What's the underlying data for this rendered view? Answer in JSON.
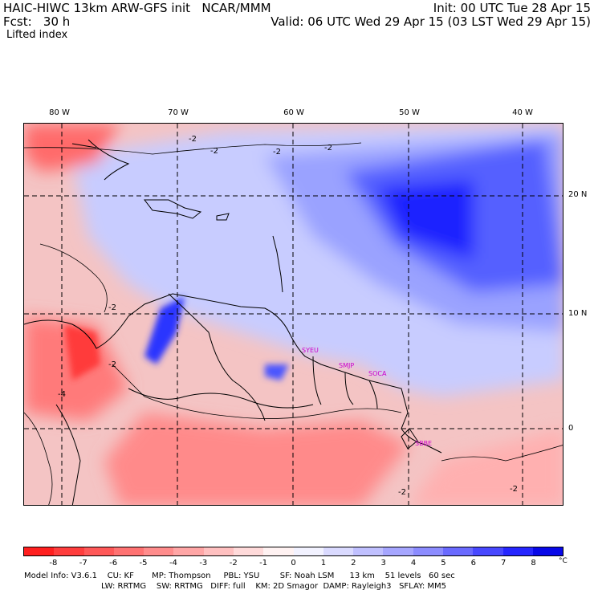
{
  "header": {
    "left_line1": "HAIC-HIWC 13km ARW-GFS init   NCAR/MMM",
    "left_line2": "Fcst:   30 h",
    "field": "Lifted index",
    "right_line1": "Init: 00 UTC Tue 28 Apr 15",
    "right_line2": "Valid: 06 UTC Wed 29 Apr 15 (03 LST Wed 29 Apr 15)"
  },
  "map": {
    "lon_labels": [
      "80 W",
      "70 W",
      "60 W",
      "50 W",
      "40 W"
    ],
    "lat_labels": [
      "20 N",
      "10 N",
      "0"
    ],
    "contour_labels": [
      "-2",
      "-2",
      "-2",
      "-2",
      "-2",
      "-2",
      "-2",
      "-4",
      "-2"
    ],
    "site_labels": [
      "SYEU",
      "SMJP",
      "SOCA",
      "SBBE"
    ]
  },
  "colorbar": {
    "ticks": [
      "-8",
      "-7",
      "-6",
      "-5",
      "-4",
      "-3",
      "-2",
      "-1",
      "0",
      "1",
      "2",
      "3",
      "4",
      "5",
      "6",
      "7",
      "8"
    ],
    "unit": "°C",
    "colors": [
      "#ff1f1f",
      "#ff3d3d",
      "#ff5858",
      "#ff7272",
      "#ff8c8c",
      "#ffa6a6",
      "#ffc0c0",
      "#ffdada",
      "#fff2f2",
      "#f2f2ff",
      "#dadaff",
      "#c0c0ff",
      "#a6a6ff",
      "#8c8cff",
      "#6a6aff",
      "#4848ff",
      "#2626ff",
      "#0808e8"
    ]
  },
  "model_info": {
    "line1": "Model Info: V3.6.1    CU: KF       MP: Thompson     PBL: YSU        SF: Noah LSM      13 km    51 levels   60 sec",
    "line2": "LW: RRTMG    SW: RRTMG   DIFF: full    KM: 2D Smagor  DAMP: Rayleigh3   SFLAY: MM5"
  }
}
